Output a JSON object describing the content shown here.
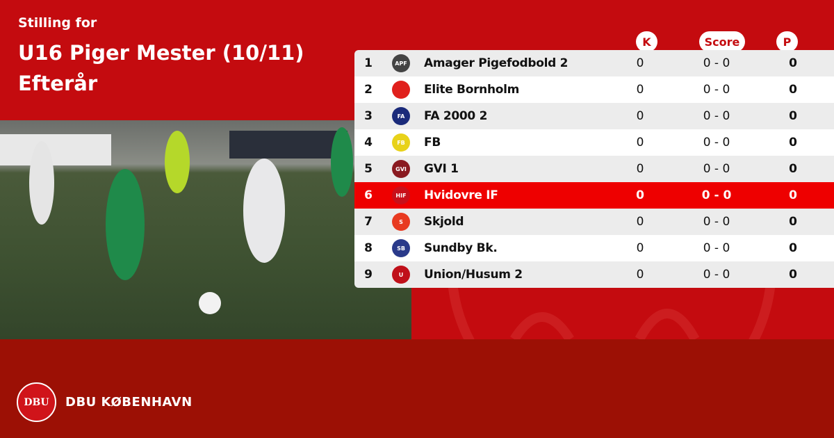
{
  "header": {
    "subtitle": "Stilling for",
    "title": "U16 Piger Mester (10/11) Efterår"
  },
  "columns": {
    "k": "K",
    "score": "Score",
    "p": "P"
  },
  "rows": [
    {
      "pos": "1",
      "team": "Amager Pigefodbold 2",
      "k": "0",
      "score": "0 - 0",
      "p": "0",
      "logo": "APF",
      "logo_color": "#444444"
    },
    {
      "pos": "2",
      "team": "Elite Bornholm",
      "k": "0",
      "score": "0 - 0",
      "p": "0",
      "logo": "",
      "logo_color": "#e0201c"
    },
    {
      "pos": "3",
      "team": "FA 2000 2",
      "k": "0",
      "score": "0 - 0",
      "p": "0",
      "logo": "FA",
      "logo_color": "#1a2a7a"
    },
    {
      "pos": "4",
      "team": "FB",
      "k": "0",
      "score": "0 - 0",
      "p": "0",
      "logo": "FB",
      "logo_color": "#e8d21a"
    },
    {
      "pos": "5",
      "team": "GVI 1",
      "k": "0",
      "score": "0 - 0",
      "p": "0",
      "logo": "GVI",
      "logo_color": "#8a1a20"
    },
    {
      "pos": "6",
      "team": "Hvidovre IF",
      "k": "0",
      "score": "0 - 0",
      "p": "0",
      "logo": "HIF",
      "logo_color": "#c8101a",
      "highlight": true
    },
    {
      "pos": "7",
      "team": "Skjold",
      "k": "0",
      "score": "0 - 0",
      "p": "0",
      "logo": "S",
      "logo_color": "#e83a20"
    },
    {
      "pos": "8",
      "team": "Sundby Bk.",
      "k": "0",
      "score": "0 - 0",
      "p": "0",
      "logo": "SB",
      "logo_color": "#2a3a8a"
    },
    {
      "pos": "9",
      "team": "Union/Husum 2",
      "k": "0",
      "score": "0 - 0",
      "p": "0",
      "logo": "U",
      "logo_color": "#c0101a"
    }
  ],
  "footer": {
    "brand": "DBU KØBENHAVN",
    "seal": "DBU"
  },
  "colors": {
    "primary": "#c40b0f",
    "footer": "#9c1005",
    "highlight": "#ee0000"
  }
}
